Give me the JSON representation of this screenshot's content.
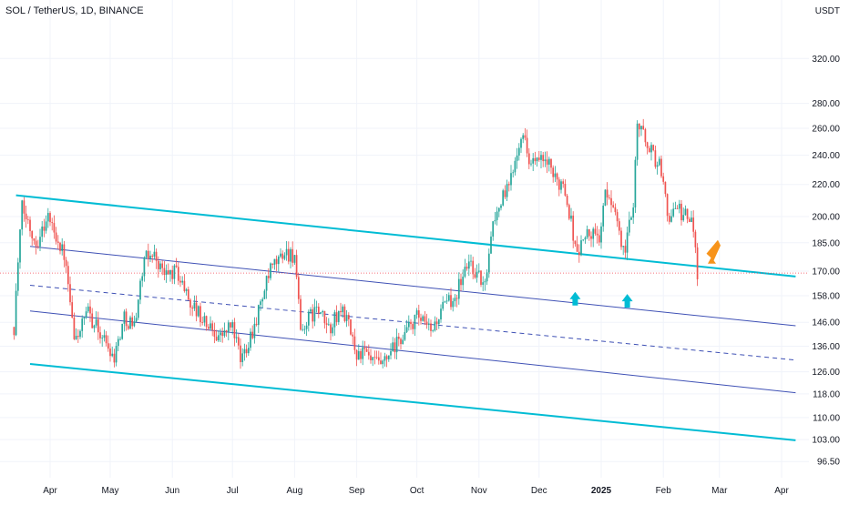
{
  "header": {
    "title": "SOL / TetherUS, 1D, BINANCE"
  },
  "colors": {
    "up": "#26a69a",
    "down": "#ef5350",
    "outer_channel": "#00bcd4",
    "inner_channel": "#3f51b5",
    "arrow_up": "#00bcd4",
    "arrow_down": "#f7931a",
    "current_price_line": "#f23645",
    "grid": "#f0f3fa"
  },
  "chart_data": {
    "type": "candlestick",
    "symbol": "SOL / TetherUS",
    "interval": "1D",
    "exchange": "BINANCE",
    "y_unit": "USDT",
    "y_scale": "log",
    "ylim": [
      93,
      340
    ],
    "y_ticks": [
      "320.00",
      "280.00",
      "260.00",
      "240.00",
      "220.00",
      "200.00",
      "185.00",
      "170.00",
      "158.00",
      "146.00",
      "136.00",
      "126.00",
      "118.00",
      "110.00",
      "103.00",
      "96.50"
    ],
    "x_ticks": [
      {
        "label": "Apr",
        "date": "2024-04-01"
      },
      {
        "label": "May",
        "date": "2024-05-01"
      },
      {
        "label": "Jun",
        "date": "2024-06-01"
      },
      {
        "label": "Jul",
        "date": "2024-07-01"
      },
      {
        "label": "Aug",
        "date": "2024-08-01"
      },
      {
        "label": "Sep",
        "date": "2024-09-01"
      },
      {
        "label": "Oct",
        "date": "2024-10-01"
      },
      {
        "label": "Nov",
        "date": "2024-11-01"
      },
      {
        "label": "Dec",
        "date": "2024-12-01"
      },
      {
        "label": "2025",
        "date": "2025-01-01",
        "bold": true
      },
      {
        "label": "Feb",
        "date": "2025-02-01"
      },
      {
        "label": "Mar",
        "date": "2025-03-01"
      },
      {
        "label": "Apr",
        "date": "2025-04-01"
      }
    ],
    "current_price": 169,
    "price_path": [
      [
        "2024-03-14",
        144
      ],
      [
        "2024-03-18",
        205
      ],
      [
        "2024-03-25",
        185
      ],
      [
        "2024-03-31",
        200
      ],
      [
        "2024-04-08",
        178
      ],
      [
        "2024-04-13",
        138
      ],
      [
        "2024-04-20",
        150
      ],
      [
        "2024-04-27",
        140
      ],
      [
        "2024-05-03",
        132
      ],
      [
        "2024-05-08",
        148
      ],
      [
        "2024-05-13",
        145
      ],
      [
        "2024-05-18",
        175
      ],
      [
        "2024-05-22",
        180
      ],
      [
        "2024-05-28",
        168
      ],
      [
        "2024-06-03",
        170
      ],
      [
        "2024-06-10",
        155
      ],
      [
        "2024-06-18",
        145
      ],
      [
        "2024-06-25",
        140
      ],
      [
        "2024-07-01",
        145
      ],
      [
        "2024-07-05",
        130
      ],
      [
        "2024-07-12",
        145
      ],
      [
        "2024-07-20",
        170
      ],
      [
        "2024-07-27",
        180
      ],
      [
        "2024-08-01",
        178
      ],
      [
        "2024-08-04",
        140
      ],
      [
        "2024-08-06",
        145
      ],
      [
        "2024-08-12",
        152
      ],
      [
        "2024-08-18",
        143
      ],
      [
        "2024-08-25",
        152
      ],
      [
        "2024-09-01",
        133
      ],
      [
        "2024-09-05",
        133
      ],
      [
        "2024-09-08",
        130
      ],
      [
        "2024-09-14",
        128
      ],
      [
        "2024-09-22",
        138
      ],
      [
        "2024-10-01",
        148
      ],
      [
        "2024-10-08",
        142
      ],
      [
        "2024-10-14",
        152
      ],
      [
        "2024-10-20",
        158
      ],
      [
        "2024-10-27",
        175
      ],
      [
        "2024-10-30",
        170
      ],
      [
        "2024-11-04",
        162
      ],
      [
        "2024-11-07",
        192
      ],
      [
        "2024-11-12",
        210
      ],
      [
        "2024-11-16",
        218
      ],
      [
        "2024-11-22",
        258
      ],
      [
        "2024-11-27",
        235
      ],
      [
        "2024-12-05",
        235
      ],
      [
        "2024-12-09",
        222
      ],
      [
        "2024-12-13",
        222
      ],
      [
        "2024-12-20",
        178
      ],
      [
        "2024-12-24",
        190
      ],
      [
        "2024-12-31",
        188
      ],
      [
        "2025-01-03",
        212
      ],
      [
        "2025-01-07",
        210
      ],
      [
        "2025-01-10",
        188
      ],
      [
        "2025-01-13",
        180
      ],
      [
        "2025-01-17",
        210
      ],
      [
        "2025-01-19",
        265
      ],
      [
        "2025-01-22",
        255
      ],
      [
        "2025-01-27",
        240
      ],
      [
        "2025-01-31",
        230
      ],
      [
        "2025-02-03",
        200
      ],
      [
        "2025-02-07",
        205
      ],
      [
        "2025-02-12",
        200
      ],
      [
        "2025-02-16",
        195
      ],
      [
        "2025-02-18",
        170
      ]
    ],
    "lines": [
      {
        "name": "outer-upper",
        "style": "solid",
        "color": "outer_channel",
        "width": 2,
        "points": [
          [
            "2024-03-15",
            213
          ],
          [
            "2025-04-08",
            167.3
          ]
        ]
      },
      {
        "name": "inner-upper",
        "style": "solid",
        "color": "inner_channel",
        "width": 1,
        "points": [
          [
            "2024-03-22",
            183
          ],
          [
            "2025-04-08",
            144.5
          ]
        ]
      },
      {
        "name": "median",
        "style": "dashed",
        "color": "inner_channel",
        "width": 1,
        "points": [
          [
            "2024-03-22",
            163
          ],
          [
            "2025-04-08",
            130.5
          ]
        ]
      },
      {
        "name": "inner-lower",
        "style": "solid",
        "color": "inner_channel",
        "width": 1,
        "points": [
          [
            "2024-03-22",
            151
          ],
          [
            "2025-04-08",
            118.4
          ]
        ]
      },
      {
        "name": "outer-lower",
        "style": "solid",
        "color": "outer_channel",
        "width": 2,
        "points": [
          [
            "2024-03-22",
            129
          ],
          [
            "2025-04-08",
            102.8
          ]
        ]
      }
    ],
    "annotations": [
      {
        "type": "arrow-up",
        "color": "arrow_up",
        "date": "2024-12-19",
        "price": 156
      },
      {
        "type": "arrow-up",
        "color": "arrow_up",
        "date": "2025-01-14",
        "price": 155
      },
      {
        "type": "arrow-down-left",
        "color": "arrow_down",
        "date": "2025-02-25",
        "price": 184
      }
    ]
  }
}
